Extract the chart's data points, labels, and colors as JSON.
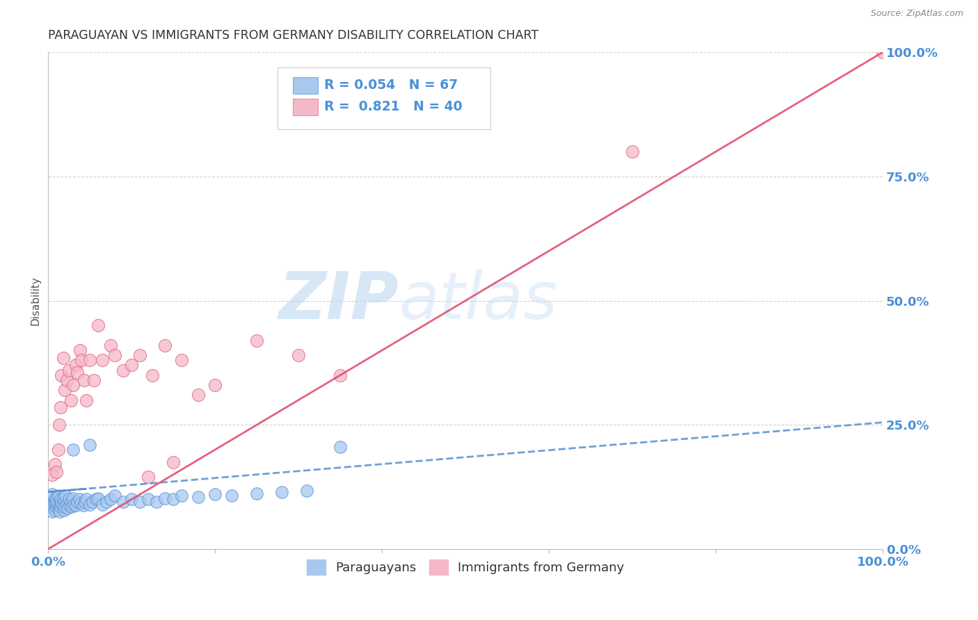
{
  "title": "PARAGUAYAN VS IMMIGRANTS FROM GERMANY DISABILITY CORRELATION CHART",
  "source": "Source: ZipAtlas.com",
  "ylabel": "Disability",
  "watermark_zip": "ZIP",
  "watermark_atlas": "atlas",
  "blue_R": 0.054,
  "blue_N": 67,
  "pink_R": 0.821,
  "pink_N": 40,
  "blue_color": "#a8c8f0",
  "pink_color": "#f5b8c8",
  "blue_edge_color": "#5590d0",
  "pink_edge_color": "#e06080",
  "blue_line_color": "#5590d0",
  "pink_line_color": "#e05070",
  "axis_label_color": "#4a90d9",
  "grid_color": "#d0d0d0",
  "background_color": "#ffffff",
  "blue_points_x": [
    0.002,
    0.003,
    0.004,
    0.005,
    0.005,
    0.006,
    0.007,
    0.008,
    0.008,
    0.009,
    0.01,
    0.01,
    0.011,
    0.012,
    0.012,
    0.013,
    0.014,
    0.014,
    0.015,
    0.015,
    0.016,
    0.017,
    0.018,
    0.019,
    0.02,
    0.02,
    0.021,
    0.022,
    0.023,
    0.025,
    0.026,
    0.027,
    0.028,
    0.03,
    0.031,
    0.033,
    0.035,
    0.037,
    0.039,
    0.042,
    0.044,
    0.046,
    0.05,
    0.053,
    0.057,
    0.06,
    0.065,
    0.07,
    0.075,
    0.08,
    0.09,
    0.1,
    0.11,
    0.12,
    0.13,
    0.14,
    0.15,
    0.16,
    0.18,
    0.2,
    0.22,
    0.25,
    0.28,
    0.31,
    0.35,
    0.05,
    0.03
  ],
  "blue_points_y": [
    0.09,
    0.085,
    0.095,
    0.075,
    0.11,
    0.088,
    0.092,
    0.078,
    0.102,
    0.095,
    0.085,
    0.1,
    0.092,
    0.08,
    0.108,
    0.088,
    0.095,
    0.075,
    0.1,
    0.085,
    0.092,
    0.088,
    0.102,
    0.078,
    0.095,
    0.085,
    0.108,
    0.09,
    0.082,
    0.1,
    0.088,
    0.095,
    0.085,
    0.102,
    0.09,
    0.088,
    0.095,
    0.1,
    0.092,
    0.088,
    0.095,
    0.1,
    0.09,
    0.095,
    0.1,
    0.102,
    0.09,
    0.095,
    0.1,
    0.108,
    0.095,
    0.1,
    0.095,
    0.1,
    0.095,
    0.102,
    0.1,
    0.108,
    0.105,
    0.11,
    0.108,
    0.112,
    0.115,
    0.118,
    0.205,
    0.21,
    0.2
  ],
  "pink_points_x": [
    0.005,
    0.008,
    0.01,
    0.012,
    0.013,
    0.015,
    0.016,
    0.018,
    0.02,
    0.022,
    0.025,
    0.027,
    0.03,
    0.033,
    0.035,
    0.038,
    0.04,
    0.043,
    0.046,
    0.05,
    0.055,
    0.06,
    0.065,
    0.075,
    0.08,
    0.09,
    0.1,
    0.11,
    0.125,
    0.14,
    0.16,
    0.18,
    0.2,
    0.25,
    0.3,
    0.35,
    0.15,
    0.12,
    0.7,
    1.0
  ],
  "pink_points_y": [
    0.15,
    0.17,
    0.155,
    0.2,
    0.25,
    0.285,
    0.35,
    0.385,
    0.32,
    0.34,
    0.36,
    0.3,
    0.33,
    0.37,
    0.355,
    0.4,
    0.38,
    0.34,
    0.3,
    0.38,
    0.34,
    0.45,
    0.38,
    0.41,
    0.39,
    0.36,
    0.37,
    0.39,
    0.35,
    0.41,
    0.38,
    0.31,
    0.33,
    0.42,
    0.39,
    0.35,
    0.175,
    0.145,
    0.8,
    1.0
  ],
  "legend_items": [
    "Paraguayans",
    "Immigrants from Germany"
  ]
}
